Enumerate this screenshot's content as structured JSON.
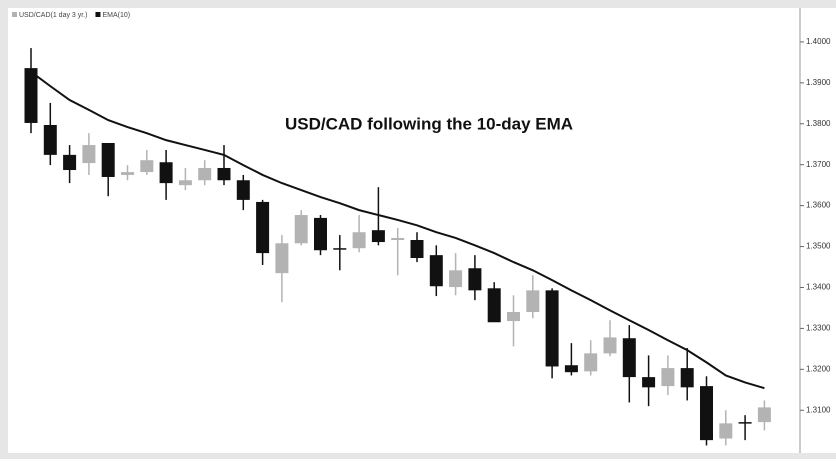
{
  "chart_data": {
    "type": "candlestick",
    "annotation": "USD/CAD following the 10-day EMA",
    "series": [
      {
        "name": "USD/CAD(1 day 3 yr.)",
        "color": "#b3b3b3",
        "down_color": "#111111",
        "open": [
          1.3936,
          1.3797,
          1.3724,
          1.3704,
          1.3753,
          1.3675,
          1.3682,
          1.3706,
          1.365,
          1.3662,
          1.3692,
          1.3662,
          1.3609,
          1.3435,
          1.3508,
          1.357,
          1.3496,
          1.3496,
          1.354,
          1.3516,
          1.3516,
          1.3479,
          1.3401,
          1.3447,
          1.3398,
          1.3318,
          1.334,
          1.3393,
          1.321,
          1.3195,
          1.3239,
          1.3276,
          1.3181,
          1.3159,
          1.3203,
          1.3159,
          1.3031,
          1.3071,
          1.3071
        ],
        "high": [
          1.3985,
          1.3851,
          1.3748,
          1.3777,
          1.3753,
          1.3699,
          1.3736,
          1.3736,
          1.3692,
          1.3711,
          1.3748,
          1.3675,
          1.3614,
          1.3528,
          1.3589,
          1.3577,
          1.3528,
          1.3577,
          1.3645,
          1.3545,
          1.3535,
          1.3503,
          1.3484,
          1.3479,
          1.3413,
          1.3381,
          1.343,
          1.3398,
          1.3264,
          1.3271,
          1.332,
          1.3308,
          1.3234,
          1.3234,
          1.3252,
          1.3183,
          1.31,
          1.3088,
          1.3124
        ],
        "low": [
          1.3777,
          1.3699,
          1.3655,
          1.3675,
          1.3623,
          1.3662,
          1.3675,
          1.3614,
          1.3638,
          1.365,
          1.365,
          1.3589,
          1.3455,
          1.3364,
          1.3503,
          1.3479,
          1.3442,
          1.3486,
          1.3503,
          1.343,
          1.3462,
          1.3379,
          1.3381,
          1.3369,
          1.3325,
          1.3256,
          1.3325,
          1.3178,
          1.3185,
          1.3185,
          1.3232,
          1.3119,
          1.311,
          1.3137,
          1.3124,
          1.3014,
          1.3014,
          1.3027,
          1.3051
        ],
        "close": [
          1.3802,
          1.3724,
          1.3687,
          1.3748,
          1.367,
          1.3682,
          1.3711,
          1.3655,
          1.3662,
          1.3692,
          1.3662,
          1.3614,
          1.3484,
          1.3508,
          1.3577,
          1.3491,
          1.3494,
          1.3535,
          1.3511,
          1.3521,
          1.3472,
          1.3403,
          1.3442,
          1.3393,
          1.3315,
          1.334,
          1.3393,
          1.3207,
          1.3193,
          1.3239,
          1.3278,
          1.3181,
          1.3156,
          1.3203,
          1.3156,
          1.3027,
          1.3068,
          1.3068,
          1.3107
        ]
      },
      {
        "name": "EMA(10)",
        "color": "#111111",
        "values": [
          1.3927,
          1.3892,
          1.3858,
          1.3834,
          1.3809,
          1.3792,
          1.3777,
          1.376,
          1.3748,
          1.3736,
          1.3724,
          1.3699,
          1.3675,
          1.3655,
          1.3638,
          1.3621,
          1.3606,
          1.3589,
          1.3577,
          1.3565,
          1.3552,
          1.3535,
          1.3521,
          1.3503,
          1.3484,
          1.3462,
          1.3442,
          1.3418,
          1.3393,
          1.3369,
          1.3344,
          1.332,
          1.3296,
          1.3271,
          1.3247,
          1.3217,
          1.3185,
          1.3168,
          1.3154
        ]
      }
    ],
    "ylim": [
      1.2998,
      1.4078
    ],
    "yticks": [
      {
        "value": 1.4,
        "label": "1.4000"
      },
      {
        "value": 1.39,
        "label": "1.3900"
      },
      {
        "value": 1.38,
        "label": "1.3800"
      },
      {
        "value": 1.37,
        "label": "1.3700"
      },
      {
        "value": 1.36,
        "label": "1.3600"
      },
      {
        "value": 1.35,
        "label": "1.3500"
      },
      {
        "value": 1.34,
        "label": "1.3400"
      },
      {
        "value": 1.33,
        "label": "1.3300"
      },
      {
        "value": 1.32,
        "label": "1.3200"
      },
      {
        "value": 1.31,
        "label": "1.3100"
      }
    ],
    "grid": false
  }
}
